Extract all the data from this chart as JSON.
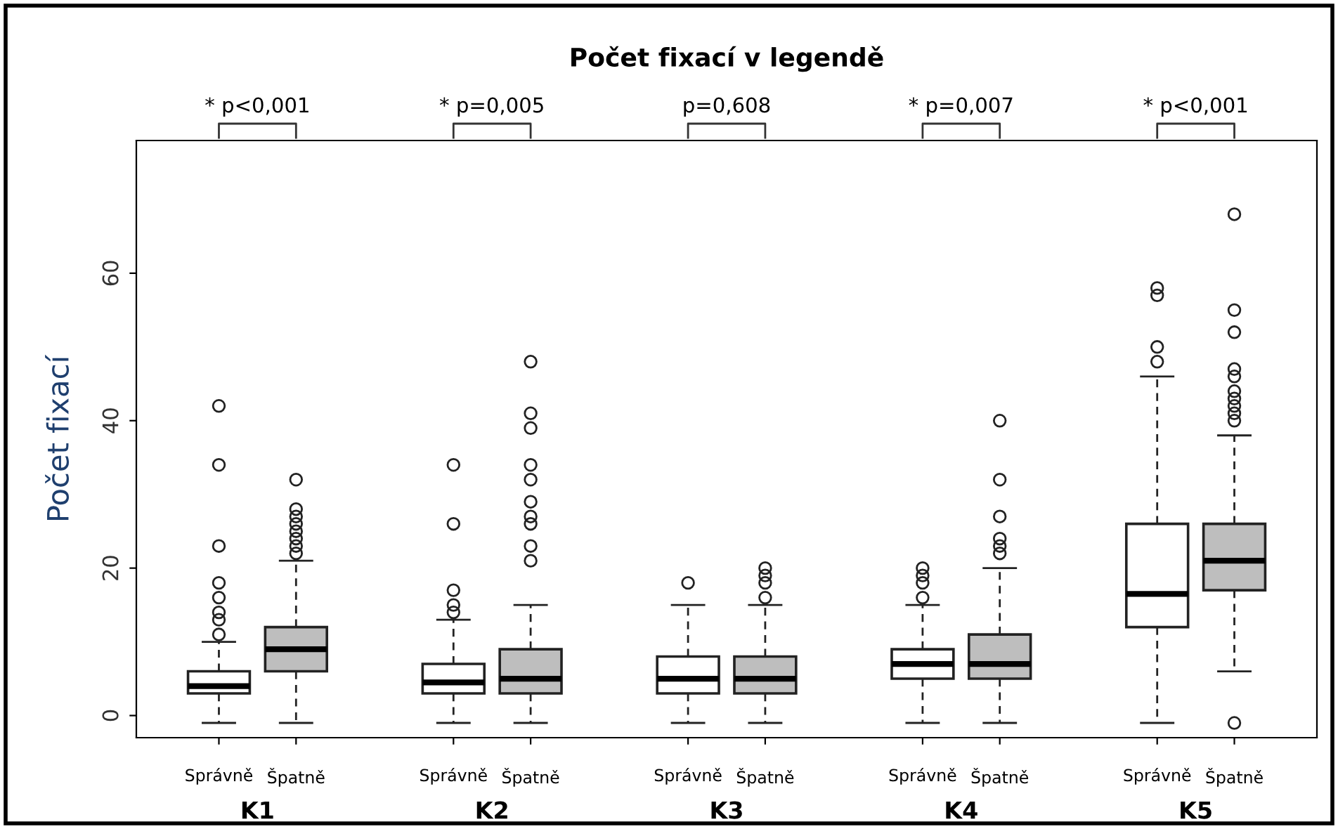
{
  "chart_data": {
    "type": "box",
    "title": "Počet fixací v legendě",
    "ylabel": "Počet fixací",
    "categories": [
      "Správně",
      "Špatně",
      "Správně",
      "Špatně",
      "Správně",
      "Špatně",
      "Správně",
      "Špatně",
      "Správně",
      "Špatně"
    ],
    "colors": [
      "#ffffff",
      "#bebebe",
      "#ffffff",
      "#bebebe",
      "#ffffff",
      "#bebebe",
      "#ffffff",
      "#bebebe",
      "#ffffff",
      "#bebebe"
    ],
    "boxes": [
      {
        "low": -1,
        "q1": 3,
        "median": 4,
        "q3": 6,
        "high": 10,
        "outliers": [
          11,
          13,
          14,
          16,
          18,
          23,
          34,
          42
        ]
      },
      {
        "low": -1,
        "q1": 6,
        "median": 9,
        "q3": 12,
        "high": 21,
        "outliers": [
          22,
          23,
          24,
          25,
          26,
          27,
          28,
          32
        ]
      },
      {
        "low": -1,
        "q1": 3,
        "median": 4.5,
        "q3": 7,
        "high": 13,
        "outliers": [
          14,
          15,
          17,
          26,
          34
        ]
      },
      {
        "low": -1,
        "q1": 3,
        "median": 5,
        "q3": 9,
        "high": 15,
        "outliers": [
          21,
          23,
          26,
          27,
          29,
          32,
          34,
          39,
          41,
          48
        ]
      },
      {
        "low": -1,
        "q1": 3,
        "median": 5,
        "q3": 8,
        "high": 15,
        "outliers": [
          18
        ]
      },
      {
        "low": -1,
        "q1": 3,
        "median": 5,
        "q3": 8,
        "high": 15,
        "outliers": [
          16,
          18,
          19,
          20
        ]
      },
      {
        "low": -1,
        "q1": 5,
        "median": 7,
        "q3": 9,
        "high": 15,
        "outliers": [
          16,
          18,
          19,
          20
        ]
      },
      {
        "low": -1,
        "q1": 5,
        "median": 7,
        "q3": 11,
        "high": 20,
        "outliers": [
          22,
          23,
          24,
          27,
          32,
          40
        ]
      },
      {
        "low": -1,
        "q1": 12,
        "median": 16.5,
        "q3": 26,
        "high": 46,
        "outliers": [
          48,
          50,
          57,
          58
        ]
      },
      {
        "low": 6,
        "q1": 17,
        "median": 21,
        "q3": 26,
        "high": 38,
        "outliers": [
          -1,
          40,
          41,
          42,
          43,
          44,
          46,
          47,
          52,
          55,
          68
        ]
      }
    ],
    "annotations": [
      "K1",
      "K2",
      "K3",
      "K4",
      "K5",
      "* p<0,001",
      "* p=0,005",
      "p=0,608",
      "* p=0,007",
      "* p<0,001"
    ],
    "ylim": [
      -3,
      78
    ],
    "yticks": [
      0,
      20,
      40,
      60
    ],
    "grid": false
  }
}
